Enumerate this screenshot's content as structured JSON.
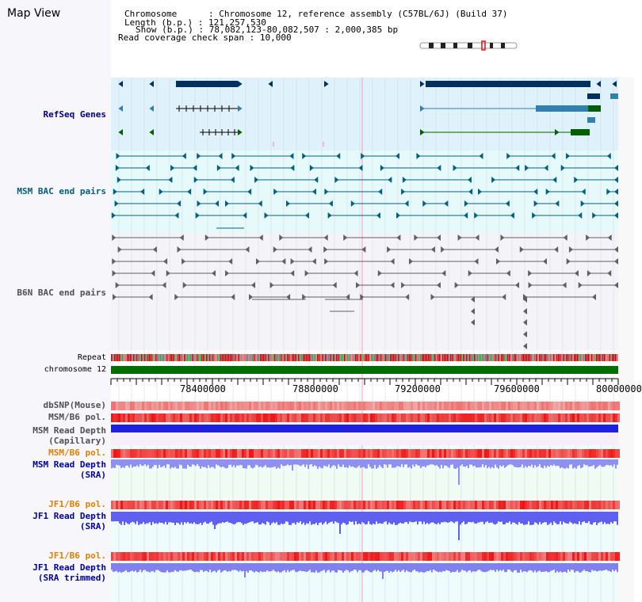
{
  "view_title": "Map View",
  "info": {
    "chromosome_label": "Chromosome",
    "chromosome_value": "Chromosome 12, reference assembly (C57BL/6J) (Build 37)",
    "length_label": "Length (b.p.)",
    "length_value": "121,257,530",
    "show_label": "Show (b.p.)",
    "show_value": "78,082,123-80,082,507 : 2,000,385 bp",
    "span_label": "Read coverage check span",
    "span_value": "10,000",
    "sep": " : "
  },
  "tracks": {
    "refseq": "RefSeq Genes",
    "msm_bac": "MSM BAC end pairs",
    "b6n_bac": "B6N BAC end pairs",
    "repeat": "Repeat",
    "chromosome": "chromosome 12",
    "dbsnp": "dbSNP(Mouse)",
    "msm_b6_pol": "MSM/B6 pol.",
    "msm_depth_cap_1": "MSM Read Depth",
    "msm_depth_cap_2": "(Capillary)",
    "msm_b6_pol_2": "MSM/B6 pol.",
    "msm_depth_sra_1": "MSM Read Depth",
    "msm_depth_sra_2": "(SRA)",
    "jf1_b6_pol": "JF1/B6 pol.",
    "jf1_depth_sra_1": "JF1 Read Depth",
    "jf1_depth_sra_2": "(SRA)",
    "jf1_b6_pol_2": "JF1/B6 pol.",
    "jf1_depth_trim_1": "JF1 Read Depth",
    "jf1_depth_trim_2": "(SRA trimmed)"
  },
  "axis": {
    "ticks": [
      "78400000",
      "78800000",
      "79200000",
      "79600000",
      "80000000"
    ]
  },
  "colors": {
    "refseq_label": "#000080",
    "msm_bac_label": "#006080",
    "b6n_bac_label": "#505050",
    "pol_label": "#e08000",
    "depth_label": "#0000a0",
    "dark_label": "#505050",
    "gene_dark": "#003060",
    "gene_mid": "#3080b0",
    "gene_green": "#006000",
    "bac_msm": "#006080",
    "bac_b6n": "#606060",
    "chrom": "#007000"
  }
}
